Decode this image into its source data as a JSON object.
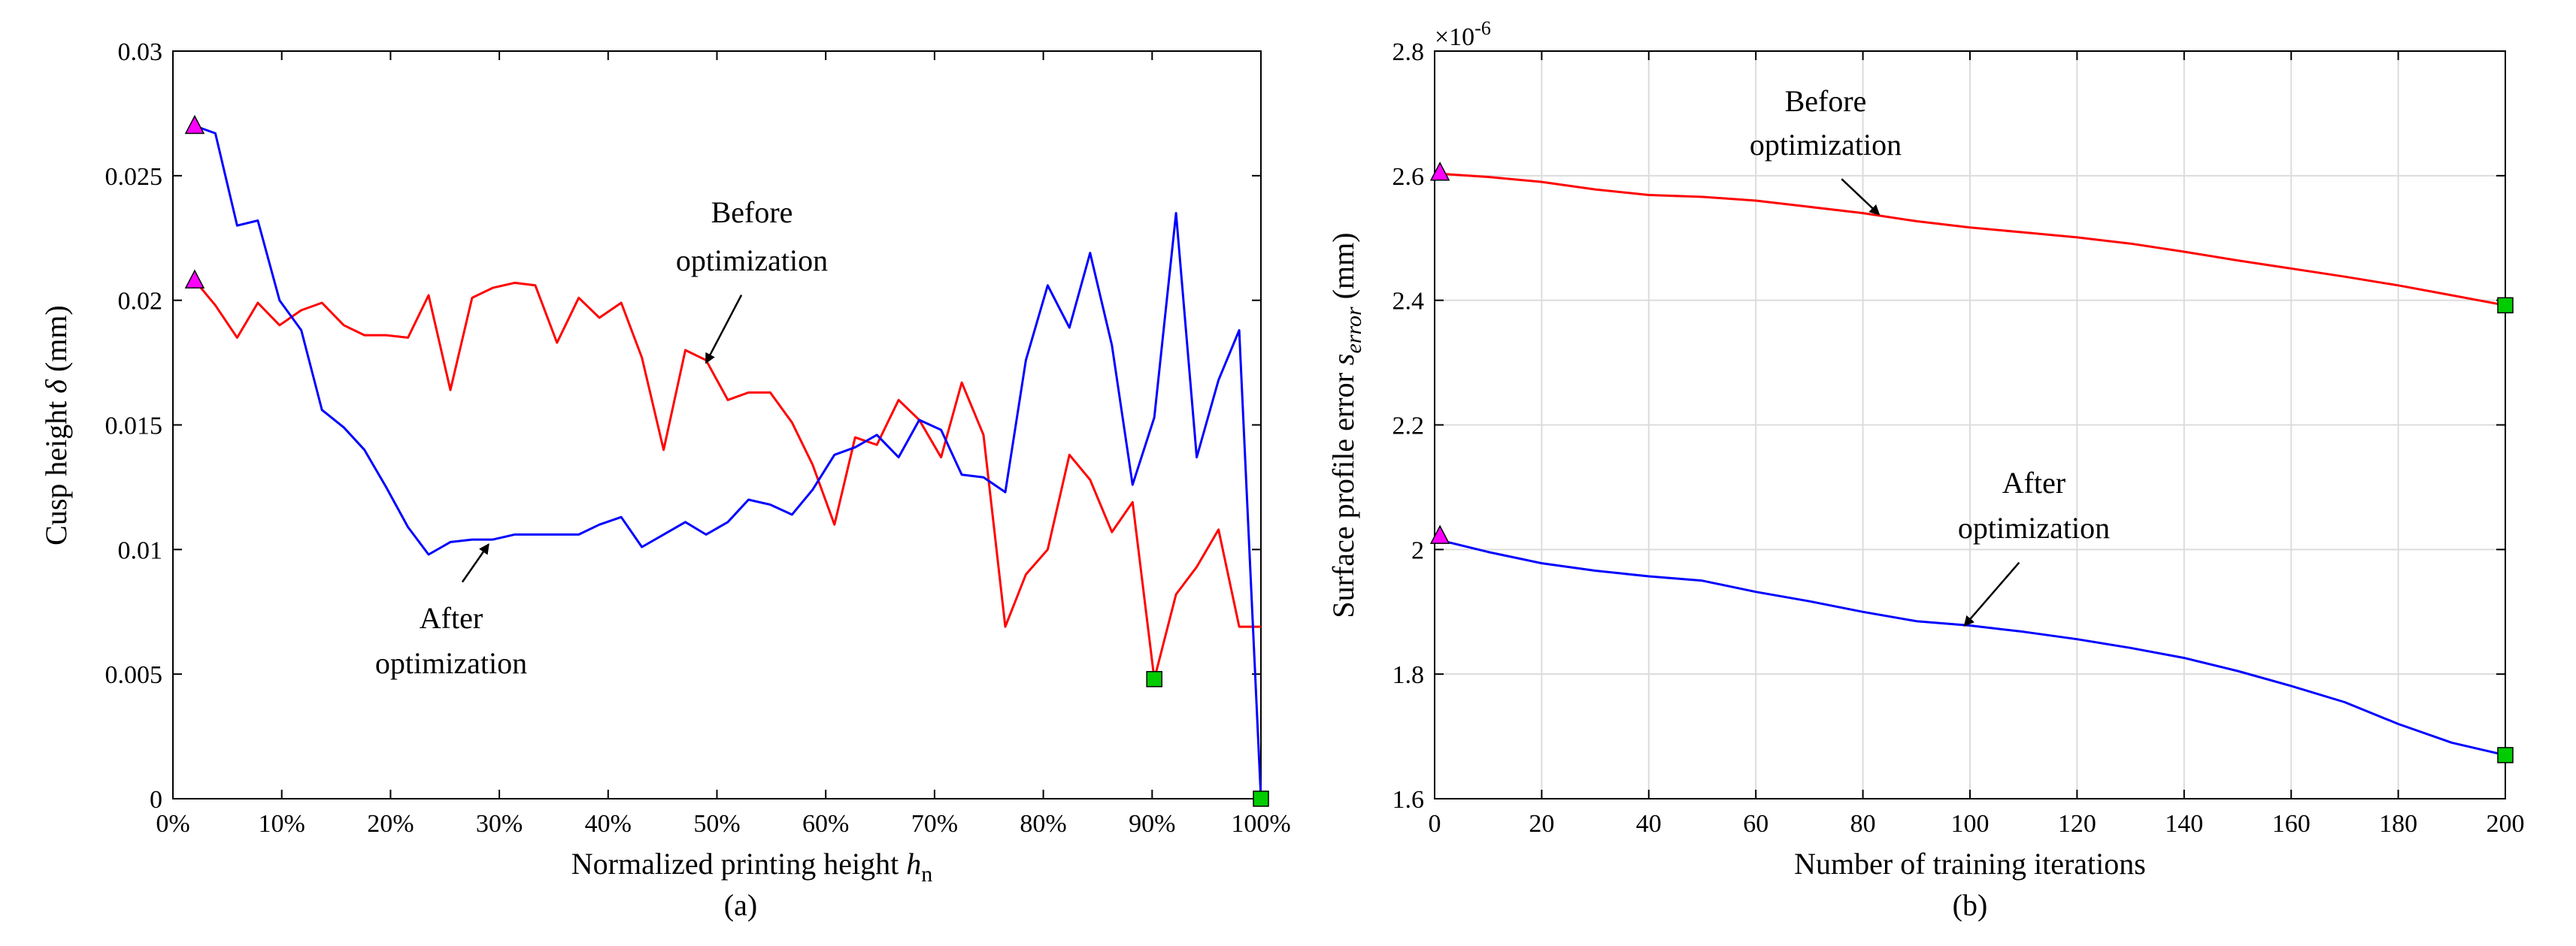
{
  "chart_data": [
    {
      "type": "line",
      "panel_label": "(a)",
      "xlabel": "Normalized printing height",
      "xlabel_symbol": "h",
      "xlabel_subscript": "n",
      "ylabel": "Cusp height",
      "ylabel_symbol": "δ",
      "ylabel_unit": "(mm)",
      "xlim": [
        0,
        100
      ],
      "ylim": [
        0,
        0.03
      ],
      "xticks": [
        0,
        10,
        20,
        30,
        40,
        50,
        60,
        70,
        80,
        90,
        100
      ],
      "xtick_labels": [
        "0%",
        "10%",
        "20%",
        "30%",
        "40%",
        "50%",
        "60%",
        "70%",
        "80%",
        "90%",
        "100%"
      ],
      "yticks": [
        0,
        0.005,
        0.01,
        0.015,
        0.02,
        0.025,
        0.03
      ],
      "ytick_labels": [
        "0",
        "0.005",
        "0.01",
        "0.015",
        "0.02",
        "0.025",
        "0.03"
      ],
      "grid": false,
      "series": [
        {
          "name": "Before optimization",
          "color": "#ff0000",
          "x": [
            2,
            3.9,
            5.9,
            7.8,
            9.8,
            11.8,
            13.7,
            15.7,
            17.6,
            19.6,
            21.6,
            23.5,
            25.5,
            27.5,
            29.4,
            31.4,
            33.3,
            35.3,
            37.3,
            39.2,
            41.2,
            43.1,
            45.1,
            47.1,
            49,
            51,
            52.9,
            54.9,
            56.9,
            58.8,
            60.8,
            62.7,
            64.7,
            66.7,
            68.6,
            70.6,
            72.5,
            74.5,
            76.5,
            78.4,
            80.4,
            82.4,
            84.3,
            86.3,
            88.2,
            90.2,
            92.2,
            94.1,
            96.1,
            98,
            100
          ],
          "y": [
            0.0208,
            0.0198,
            0.0185,
            0.0199,
            0.019,
            0.0196,
            0.0199,
            0.019,
            0.0186,
            0.0186,
            0.0185,
            0.0202,
            0.0164,
            0.0201,
            0.0205,
            0.0207,
            0.0206,
            0.0183,
            0.0201,
            0.0193,
            0.0199,
            0.0177,
            0.014,
            0.018,
            0.0176,
            0.016,
            0.0163,
            0.0163,
            0.0151,
            0.0134,
            0.011,
            0.0145,
            0.0142,
            0.016,
            0.0152,
            0.0137,
            0.0167,
            0.0146,
            0.0069,
            0.009,
            0.01,
            0.0138,
            0.0128,
            0.0107,
            0.0119,
            0.0048,
            0.0082,
            0.0093,
            0.0108,
            0.0069,
            0.0069
          ]
        },
        {
          "name": "After optimization",
          "color": "#0000ff",
          "x": [
            2,
            3.9,
            5.9,
            7.8,
            9.8,
            11.8,
            13.7,
            15.7,
            17.6,
            19.6,
            21.6,
            23.5,
            25.5,
            27.5,
            29.4,
            31.4,
            33.3,
            35.3,
            37.3,
            39.2,
            41.2,
            43.1,
            45.1,
            47.1,
            49,
            51,
            52.9,
            54.9,
            56.9,
            58.8,
            60.8,
            62.7,
            64.7,
            66.7,
            68.6,
            70.6,
            72.5,
            74.5,
            76.5,
            78.4,
            80.4,
            82.4,
            84.3,
            86.3,
            88.2,
            90.2,
            92.2,
            94.1,
            96.1,
            98,
            100
          ],
          "y": [
            0.027,
            0.0267,
            0.023,
            0.0232,
            0.02,
            0.0188,
            0.0156,
            0.0149,
            0.014,
            0.0125,
            0.0109,
            0.0098,
            0.0103,
            0.0104,
            0.0104,
            0.0106,
            0.0106,
            0.0106,
            0.0106,
            0.011,
            0.0113,
            0.0101,
            0.0106,
            0.0111,
            0.0106,
            0.0111,
            0.012,
            0.0118,
            0.0114,
            0.0124,
            0.0138,
            0.0141,
            0.0146,
            0.0137,
            0.0152,
            0.0148,
            0.013,
            0.0129,
            0.0123,
            0.0176,
            0.0206,
            0.0189,
            0.0219,
            0.0182,
            0.0126,
            0.0153,
            0.0235,
            0.0137,
            0.0168,
            0.0188,
            0
          ]
        }
      ],
      "markers": [
        {
          "type": "triangle",
          "color": "#ff00ff",
          "x": 2,
          "y": 0.027
        },
        {
          "type": "triangle",
          "color": "#ff00ff",
          "x": 2,
          "y": 0.0208
        },
        {
          "type": "square",
          "color": "#00cc00",
          "x": 90.2,
          "y": 0.0048
        },
        {
          "type": "square",
          "color": "#00cc00",
          "x": 100,
          "y": 0
        }
      ],
      "annotations": [
        {
          "lines": [
            "Before",
            "optimization"
          ],
          "arrow_to": [
            49,
            0.0175
          ]
        },
        {
          "lines": [
            "After",
            "optimization"
          ],
          "arrow_to": [
            29,
            0.0102
          ]
        }
      ]
    },
    {
      "type": "line",
      "panel_label": "(b)",
      "xlabel": "Number of training iterations",
      "ylabel": "Surface profile error",
      "ylabel_symbol": "s",
      "ylabel_subscript": "error",
      "ylabel_unit": "(mm)",
      "exponent_label": "×10",
      "exponent": "-6",
      "xlim": [
        0,
        200
      ],
      "ylim": [
        1.6,
        2.8
      ],
      "xticks": [
        0,
        20,
        40,
        60,
        80,
        100,
        120,
        140,
        160,
        180,
        200
      ],
      "xtick_labels": [
        "0",
        "20",
        "40",
        "60",
        "80",
        "100",
        "120",
        "140",
        "160",
        "180",
        "200"
      ],
      "yticks": [
        1.6,
        1.8,
        2,
        2.2,
        2.4,
        2.6,
        2.8
      ],
      "ytick_labels": [
        "1.6",
        "1.8",
        "2",
        "2.2",
        "2.4",
        "2.6",
        "2.8"
      ],
      "grid": true,
      "series": [
        {
          "name": "Before optimization",
          "color": "#ff0000",
          "x": [
            1,
            10,
            20,
            30,
            40,
            50,
            60,
            70,
            80,
            90,
            100,
            110,
            120,
            130,
            140,
            150,
            160,
            170,
            180,
            190,
            200
          ],
          "y": [
            2.603,
            2.598,
            2.59,
            2.578,
            2.569,
            2.566,
            2.56,
            2.55,
            2.54,
            2.527,
            2.517,
            2.509,
            2.501,
            2.491,
            2.478,
            2.464,
            2.451,
            2.438,
            2.424,
            2.408,
            2.392
          ]
        },
        {
          "name": "After optimization",
          "color": "#0000ff",
          "x": [
            1,
            10,
            20,
            30,
            40,
            50,
            60,
            70,
            80,
            90,
            100,
            110,
            120,
            130,
            140,
            150,
            160,
            170,
            180,
            190,
            200
          ],
          "y": [
            2.015,
            1.996,
            1.978,
            1.966,
            1.957,
            1.95,
            1.932,
            1.917,
            1.9,
            1.885,
            1.878,
            1.868,
            1.856,
            1.842,
            1.826,
            1.805,
            1.781,
            1.755,
            1.72,
            1.69,
            1.67
          ]
        }
      ],
      "markers": [
        {
          "type": "triangle",
          "color": "#ff00ff",
          "x": 1,
          "y": 2.605
        },
        {
          "type": "triangle",
          "color": "#ff00ff",
          "x": 1,
          "y": 2.022
        },
        {
          "type": "square",
          "color": "#00cc00",
          "x": 200,
          "y": 2.392
        },
        {
          "type": "square",
          "color": "#00cc00",
          "x": 200,
          "y": 1.67
        }
      ],
      "annotations": [
        {
          "lines": [
            "Before",
            "optimization"
          ],
          "arrow_to": [
            83,
            2.538
          ]
        },
        {
          "lines": [
            "After",
            "optimization"
          ],
          "arrow_to": [
            99,
            1.878
          ]
        }
      ]
    }
  ]
}
